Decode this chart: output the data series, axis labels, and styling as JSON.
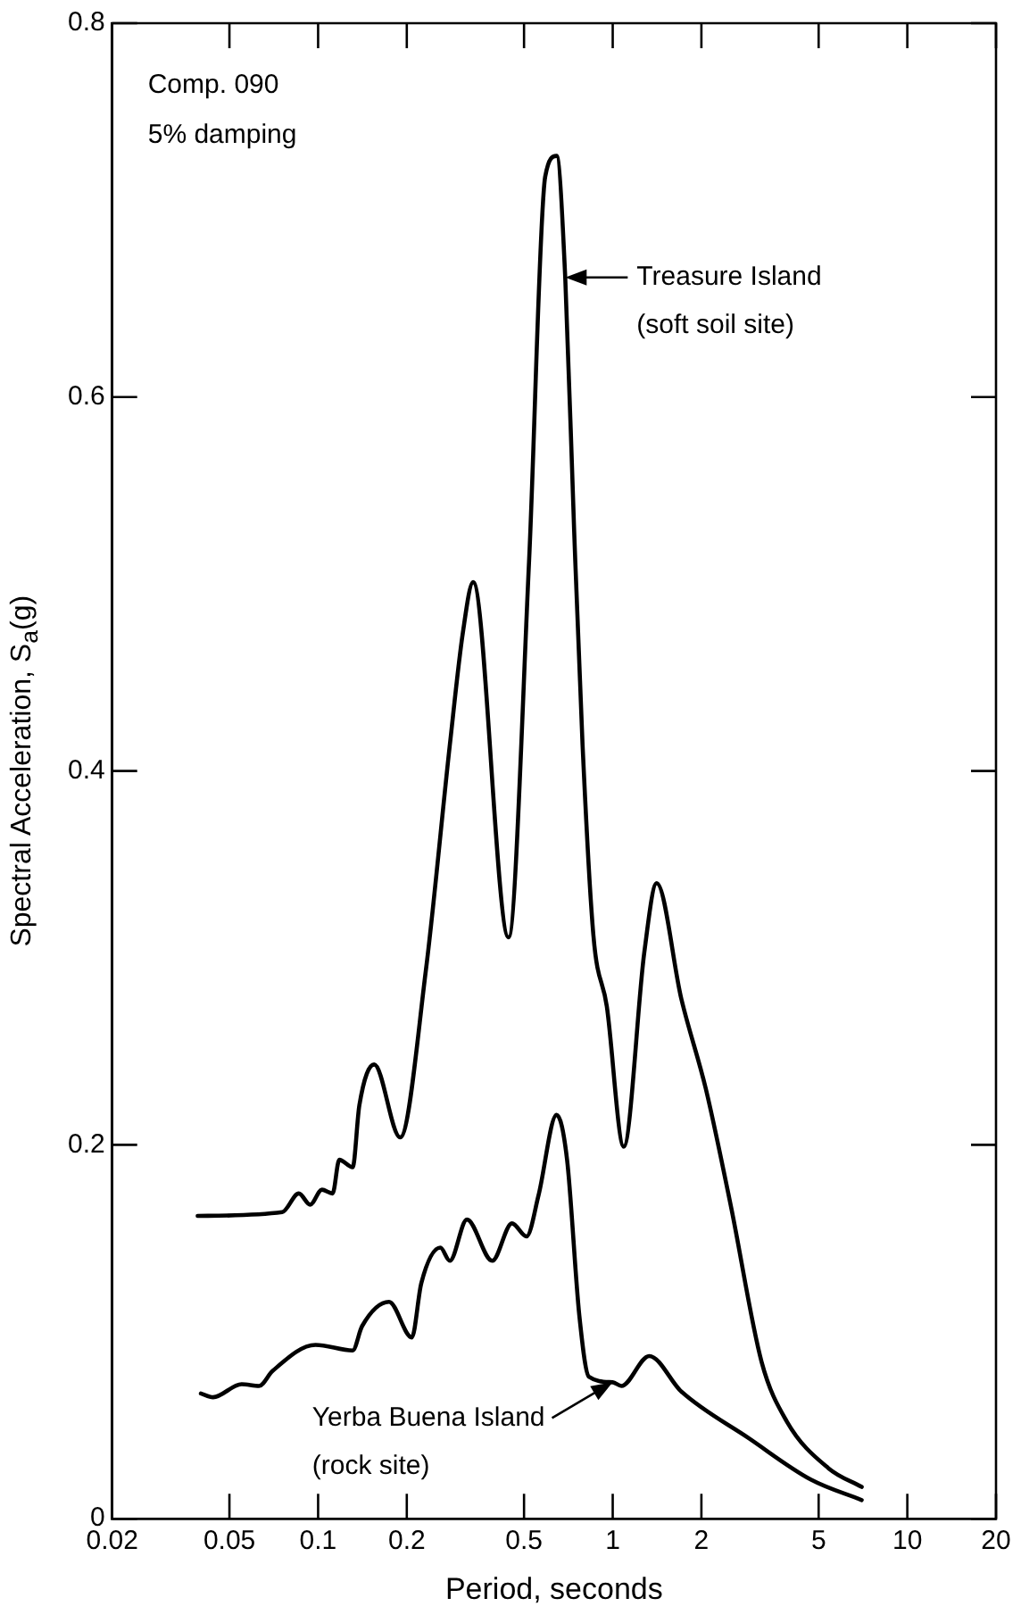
{
  "chart_data": {
    "type": "line",
    "xlabel": "Period, seconds",
    "ylabel": "Spectral Acceleration, S$_{a}$(g)",
    "log": "x",
    "xlim": [
      0.02,
      20
    ],
    "xticks": [
      0.02,
      0.05,
      0.1,
      0.2,
      0.5,
      1,
      2,
      5,
      10,
      20
    ],
    "ylim": [
      0,
      0.8
    ],
    "yticks": [
      0,
      0.2,
      0.4,
      0.6,
      0.8
    ],
    "legend": false,
    "marker": "none",
    "line_style": "solid",
    "series": [
      {
        "color": "#000000",
        "x": [
          0.039,
          0.0755,
          0.086,
          0.094,
          0.103,
          0.112,
          0.118,
          0.131,
          0.138,
          0.155,
          0.19,
          0.232,
          0.28,
          0.31,
          0.336,
          0.443,
          0.52,
          0.59,
          0.645,
          0.69,
          0.74,
          0.79,
          0.86,
          0.955,
          1.09,
          1.28,
          1.41,
          1.71,
          2.07,
          2.52,
          3.2,
          3.9,
          5.4,
          7.0
        ],
        "values": [
          0.162,
          0.164,
          0.174,
          0.168,
          0.176,
          0.174,
          0.192,
          0.188,
          0.221,
          0.243,
          0.204,
          0.293,
          0.414,
          0.474,
          0.501,
          0.311,
          0.512,
          0.718,
          0.729,
          0.664,
          0.528,
          0.414,
          0.312,
          0.274,
          0.199,
          0.303,
          0.34,
          0.278,
          0.23,
          0.167,
          0.084,
          0.052,
          0.027,
          0.017
        ]
      },
      {
        "color": "#000000",
        "x": [
          0.04,
          0.044,
          0.055,
          0.063,
          0.07,
          0.098,
          0.131,
          0.141,
          0.174,
          0.208,
          0.224,
          0.26,
          0.28,
          0.32,
          0.39,
          0.455,
          0.51,
          0.56,
          0.645,
          0.7,
          0.77,
          0.83,
          1.0,
          1.07,
          1.33,
          1.71,
          2.9,
          4.7,
          7.0
        ],
        "values": [
          0.067,
          0.065,
          0.072,
          0.071,
          0.079,
          0.093,
          0.09,
          0.103,
          0.116,
          0.097,
          0.126,
          0.145,
          0.138,
          0.16,
          0.138,
          0.158,
          0.151,
          0.173,
          0.216,
          0.192,
          0.109,
          0.076,
          0.073,
          0.071,
          0.087,
          0.068,
          0.043,
          0.021,
          0.01
        ]
      }
    ],
    "annotations": [
      "Comp. 090",
      "5% damping",
      {
        "text": "Treasure Island\n(soft soil site)",
        "x": 0.69,
        "y": 0.664
      },
      {
        "text": "Yerba Buena Island\n(rock site)",
        "x": 1.0,
        "y": 0.073
      }
    ]
  }
}
